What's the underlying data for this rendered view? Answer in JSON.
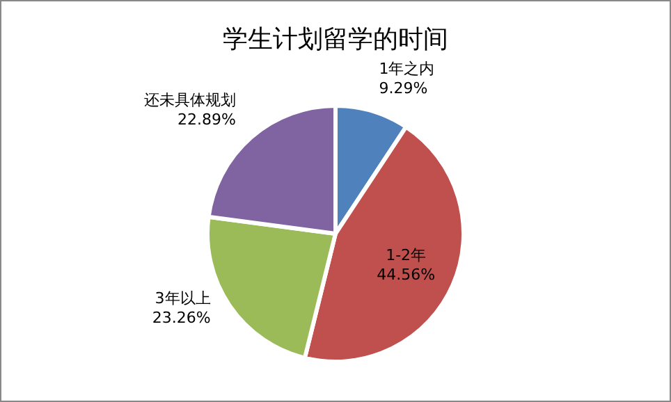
{
  "chart_data": {
    "type": "pie",
    "title": "学生计划留学的时间",
    "categories": [
      "1年之内",
      "1-2年",
      "3年以上",
      "还未具体规划"
    ],
    "values": [
      9.29,
      44.56,
      23.26,
      22.89
    ],
    "value_labels": [
      "9.29%",
      "44.56%",
      "23.26%",
      "22.89%"
    ],
    "colors": [
      "#4f81bd",
      "#c0504d",
      "#9bbb59",
      "#8064a2"
    ],
    "legend": false
  }
}
